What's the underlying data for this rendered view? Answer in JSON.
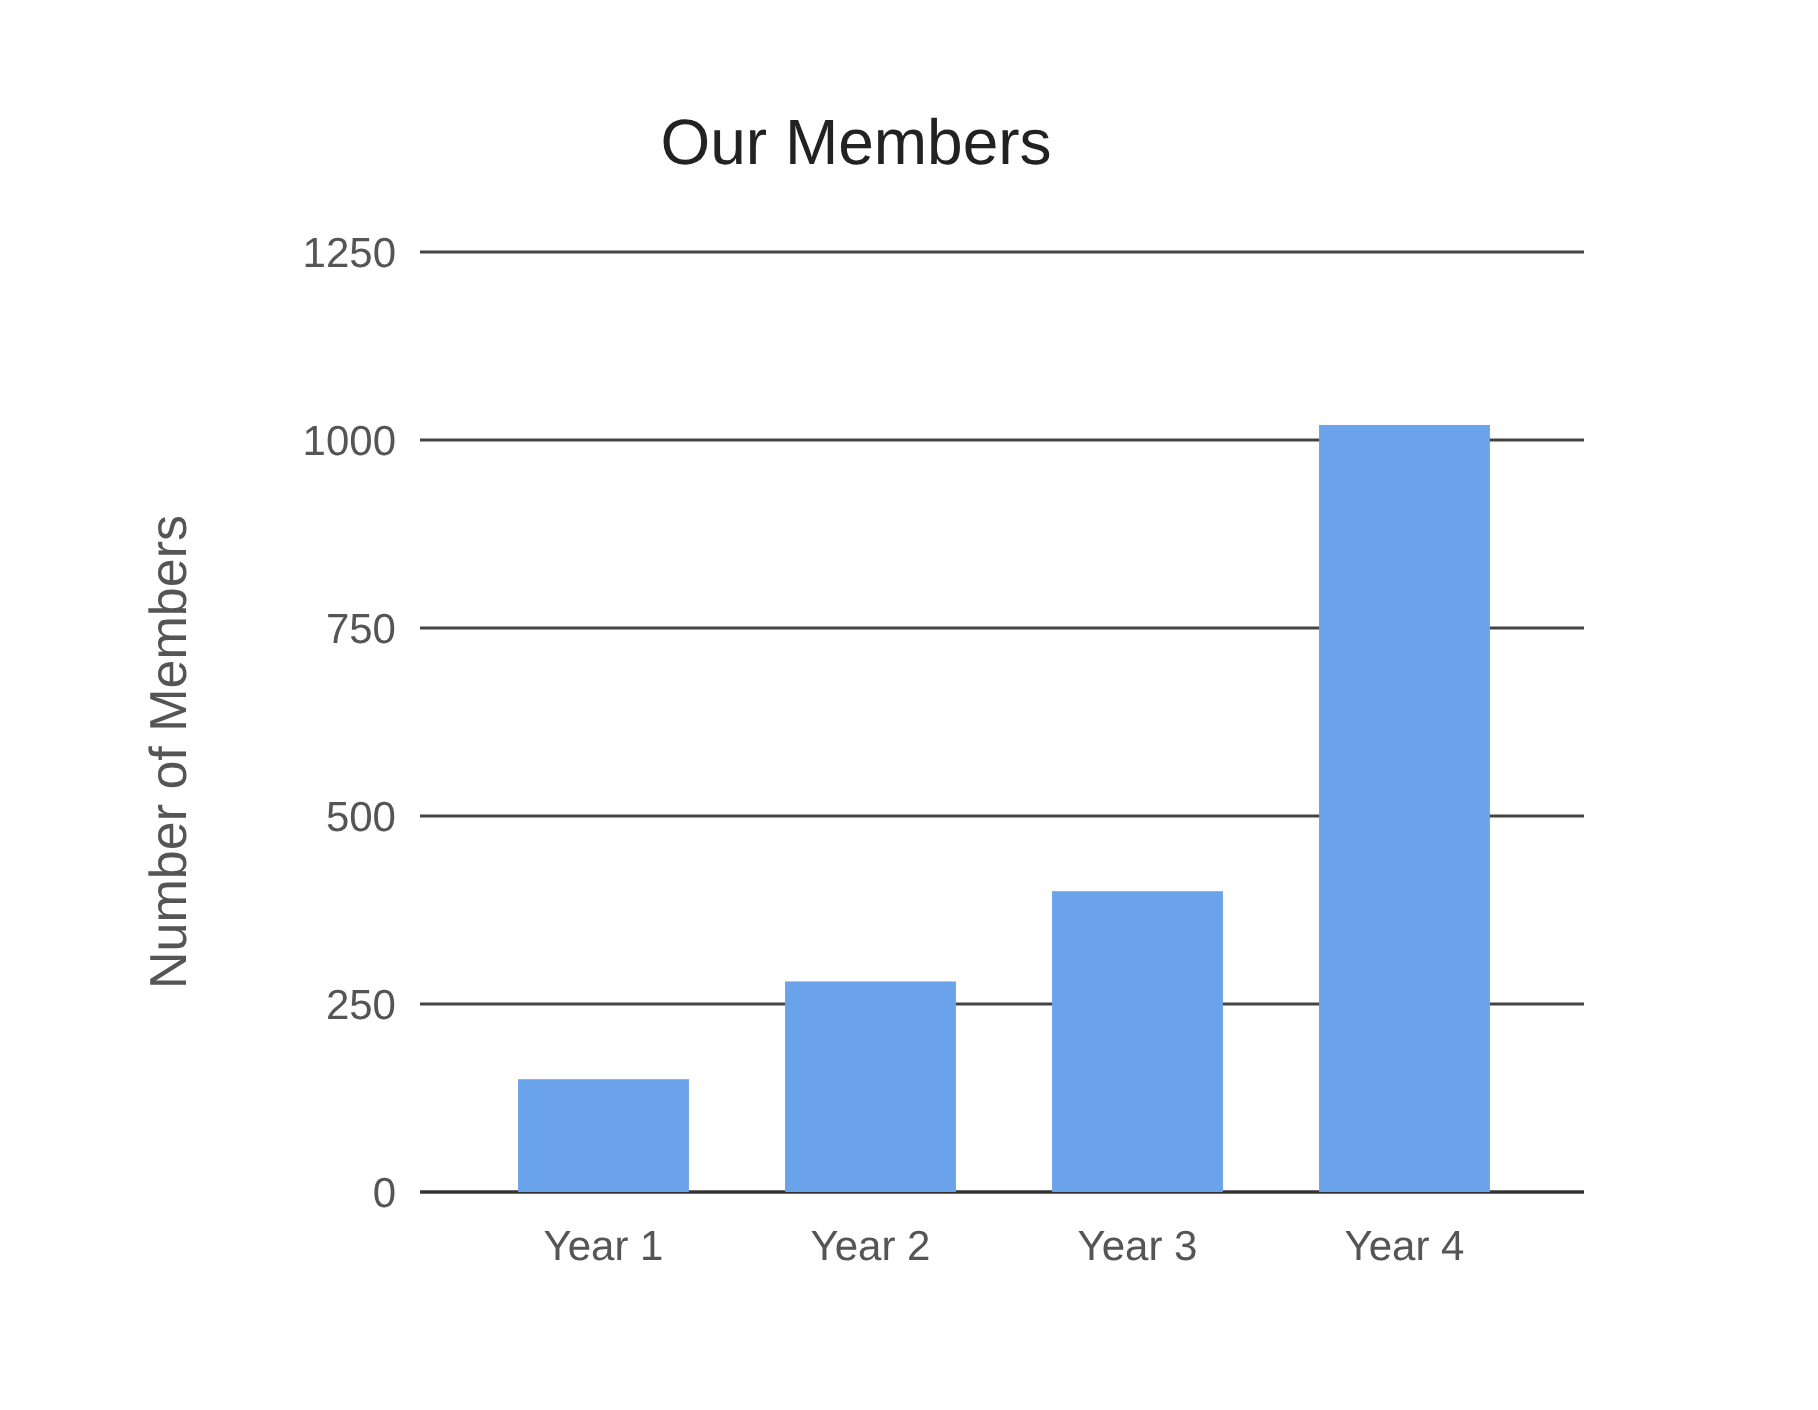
{
  "chart_data": {
    "type": "bar",
    "title": "Our Members",
    "ylabel": "Number of Members",
    "categories": [
      "Year 1",
      "Year 2",
      "Year 3",
      "Year 4"
    ],
    "values": [
      150,
      280,
      400,
      1020
    ],
    "color": "#6aa3ea",
    "ylim": [
      0,
      1250
    ],
    "yticks": [
      0,
      250,
      500,
      750,
      1000,
      1250
    ],
    "grid": "y"
  }
}
